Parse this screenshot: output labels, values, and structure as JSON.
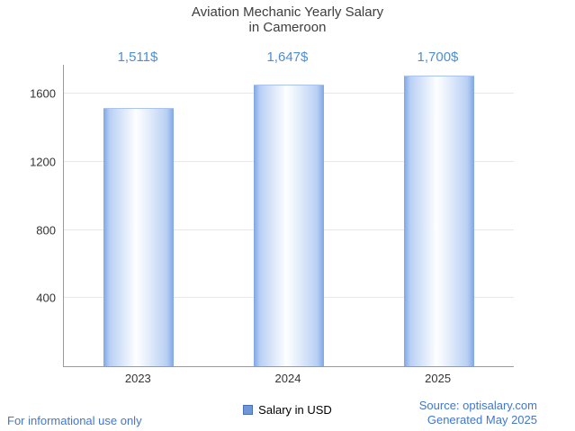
{
  "title": {
    "line1": "Aviation Mechanic Yearly Salary",
    "line2": "in Cameroon"
  },
  "chart_data": {
    "type": "bar",
    "title": "Aviation Mechanic Yearly Salary in Cameroon",
    "categories": [
      "2023",
      "2024",
      "2025"
    ],
    "values": [
      1511,
      1647,
      1700
    ],
    "value_labels": [
      "1,511$",
      "1,647$",
      "1,700$"
    ],
    "series_name": "Salary in USD",
    "xlabel": "",
    "ylabel": "",
    "ylim": [
      0,
      1770
    ],
    "yticks": [
      400,
      800,
      1200,
      1600
    ],
    "grid": "horizontal",
    "legend_position": "bottom",
    "colors": {
      "bar_edge": "#7fa6e6",
      "bar_center": "#ffffff",
      "value_label": "#4a8fd4",
      "axis": "#9a9a9a",
      "gridline": "#e8e8e8",
      "footer_text": "#4177cf"
    }
  },
  "legend": {
    "label": "Salary in USD",
    "swatch_color": "#6f97d7"
  },
  "footer": {
    "disclaimer": "For informational use only",
    "source": "Source: optisalary.com",
    "generated": "Generated May 2025"
  }
}
